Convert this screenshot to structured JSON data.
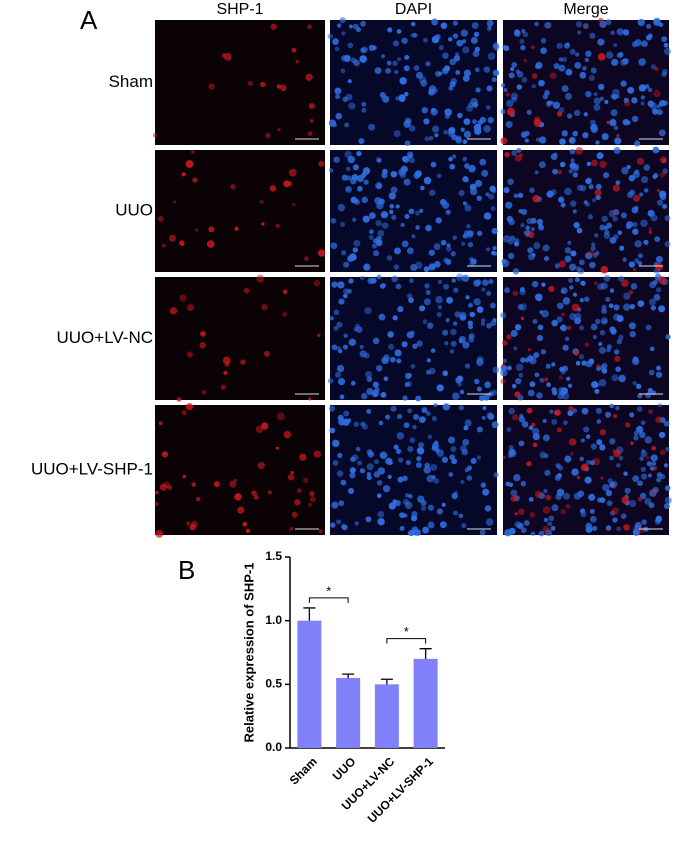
{
  "figure_a": {
    "label": "A",
    "columns": [
      "SHP-1",
      "DAPI",
      "Merge"
    ],
    "rows": [
      "Sham",
      "UUO",
      "UUO+LV-NC",
      "UUO+LV-SHP-1"
    ]
  },
  "figure_b_label": "B",
  "chart_data": {
    "type": "bar",
    "y_label": "Relative expression of SHP-1",
    "categories": [
      "Sham",
      "UUO",
      "UUO+LV-NC",
      "UUO+LV-SHP-1"
    ],
    "values": [
      1.0,
      0.55,
      0.5,
      0.7
    ],
    "errors": [
      0.1,
      0.03,
      0.04,
      0.08
    ],
    "color": "#8080f8",
    "ylim": [
      0,
      1.5
    ],
    "yticks": [
      {
        "value": 0,
        "label": "0.0"
      },
      0.5,
      {
        "value": 1,
        "label": "1.0"
      },
      {
        "value": 1.5,
        "label": "1.5"
      }
    ],
    "annotations": [
      "*",
      "*"
    ]
  }
}
